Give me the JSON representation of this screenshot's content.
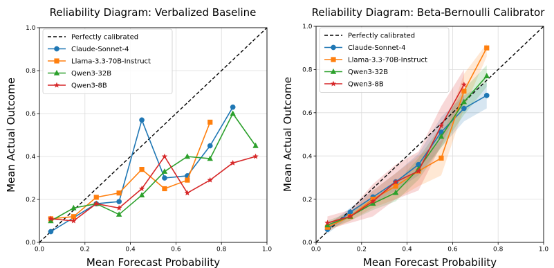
{
  "chart_data": [
    {
      "type": "line",
      "title": "Reliability Diagram: Verbalized Baseline",
      "xlabel": "Mean Forecast Probability",
      "ylabel": "Mean Actual Outcome",
      "xlim": [
        0.0,
        1.0
      ],
      "ylim": [
        0.0,
        1.0
      ],
      "xticks": [
        "0.0",
        "0.2",
        "0.4",
        "0.6",
        "0.8",
        "1.0"
      ],
      "yticks": [
        "0.0",
        "0.2",
        "0.4",
        "0.6",
        "0.8",
        "1.0"
      ],
      "grid": true,
      "legend_position": "top-left",
      "reference_line": {
        "name": "Perfectly calibrated",
        "color": "#000000",
        "style": "dashed"
      },
      "series": [
        {
          "name": "Claude-Sonnet-4",
          "color": "#1f77b4",
          "marker": "circle",
          "x": [
            0.05,
            0.25,
            0.35,
            0.45,
            0.55,
            0.65,
            0.75,
            0.85
          ],
          "y": [
            0.05,
            0.18,
            0.19,
            0.57,
            0.3,
            0.31,
            0.45,
            0.63
          ]
        },
        {
          "name": "Llama-3.3-70B-Instruct",
          "color": "#ff7f0e",
          "marker": "square",
          "x": [
            0.05,
            0.15,
            0.25,
            0.35,
            0.45,
            0.55,
            0.65,
            0.75
          ],
          "y": [
            0.11,
            0.12,
            0.21,
            0.23,
            0.34,
            0.25,
            0.29,
            0.56
          ]
        },
        {
          "name": "Qwen3-32B",
          "color": "#2ca02c",
          "marker": "triangle",
          "x": [
            0.05,
            0.15,
            0.25,
            0.35,
            0.45,
            0.55,
            0.65,
            0.75,
            0.85,
            0.95
          ],
          "y": [
            0.1,
            0.16,
            0.18,
            0.13,
            0.22,
            0.33,
            0.4,
            0.39,
            0.6,
            0.45
          ]
        },
        {
          "name": "Qwen3-8B",
          "color": "#d62728",
          "marker": "star",
          "x": [
            0.05,
            0.15,
            0.25,
            0.35,
            0.45,
            0.55,
            0.65,
            0.75,
            0.85,
            0.95
          ],
          "y": [
            0.11,
            0.1,
            0.18,
            0.16,
            0.25,
            0.4,
            0.23,
            0.29,
            0.37,
            0.4
          ]
        }
      ]
    },
    {
      "type": "line",
      "title": "Reliability Diagram: Beta-Bernoulli Calibrator",
      "xlabel": "Mean Forecast Probability",
      "ylabel": "Mean Actual Outcome",
      "xlim": [
        0.0,
        1.0
      ],
      "ylim": [
        0.0,
        1.0
      ],
      "xticks": [
        "0.0",
        "0.2",
        "0.4",
        "0.6",
        "0.8",
        "1.0"
      ],
      "yticks": [
        "0.0",
        "0.2",
        "0.4",
        "0.6",
        "0.8",
        "1.0"
      ],
      "grid": true,
      "legend_position": "top-left",
      "reference_line": {
        "name": "Perfectly calibrated",
        "color": "#000000",
        "style": "dashed"
      },
      "series": [
        {
          "name": "Claude-Sonnet-4",
          "color": "#1f77b4",
          "marker": "circle",
          "x": [
            0.05,
            0.15,
            0.25,
            0.35,
            0.45,
            0.55,
            0.65,
            0.75
          ],
          "y": [
            0.06,
            0.14,
            0.21,
            0.28,
            0.36,
            0.51,
            0.62,
            0.68
          ],
          "band_lower": [
            0.04,
            0.12,
            0.18,
            0.24,
            0.31,
            0.44,
            0.56,
            0.62
          ],
          "band_upper": [
            0.08,
            0.16,
            0.24,
            0.32,
            0.41,
            0.58,
            0.68,
            0.74
          ]
        },
        {
          "name": "Llama-3.3-70B-Instruct",
          "color": "#ff7f0e",
          "marker": "square",
          "x": [
            0.05,
            0.15,
            0.25,
            0.35,
            0.45,
            0.55,
            0.65,
            0.75
          ],
          "y": [
            0.07,
            0.12,
            0.2,
            0.26,
            0.33,
            0.39,
            0.7,
            0.9
          ],
          "band_lower": [
            0.05,
            0.1,
            0.16,
            0.2,
            0.26,
            0.31,
            0.62,
            0.86
          ],
          "band_upper": [
            0.09,
            0.14,
            0.24,
            0.32,
            0.4,
            0.47,
            0.78,
            0.92
          ]
        },
        {
          "name": "Qwen3-32B",
          "color": "#2ca02c",
          "marker": "triangle",
          "x": [
            0.05,
            0.15,
            0.25,
            0.35,
            0.45,
            0.55,
            0.65,
            0.75
          ],
          "y": [
            0.08,
            0.12,
            0.18,
            0.23,
            0.34,
            0.49,
            0.65,
            0.77
          ],
          "band_lower": [
            0.06,
            0.1,
            0.15,
            0.19,
            0.29,
            0.44,
            0.59,
            0.72
          ],
          "band_upper": [
            0.1,
            0.14,
            0.21,
            0.27,
            0.39,
            0.54,
            0.71,
            0.82
          ]
        },
        {
          "name": "Qwen3-8B",
          "color": "#d62728",
          "marker": "star",
          "x": [
            0.05,
            0.15,
            0.25,
            0.35,
            0.45,
            0.55,
            0.65
          ],
          "y": [
            0.09,
            0.12,
            0.19,
            0.28,
            0.33,
            0.54,
            0.73
          ],
          "band_lower": [
            0.06,
            0.09,
            0.12,
            0.2,
            0.24,
            0.45,
            0.66
          ],
          "band_upper": [
            0.12,
            0.15,
            0.27,
            0.36,
            0.42,
            0.63,
            0.8
          ]
        }
      ]
    }
  ]
}
